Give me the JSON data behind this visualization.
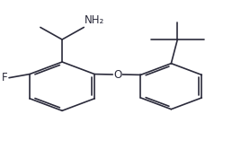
{
  "bg_color": "#ffffff",
  "line_color": "#2b2b3b",
  "text_color": "#2b2b3b",
  "figsize": [
    2.58,
    1.66
  ],
  "dpi": 100,
  "lw": 1.2,
  "lrx": 0.255,
  "lry": 0.42,
  "lr": 0.165,
  "rrx": 0.735,
  "rry": 0.42,
  "rr": 0.155,
  "label_NH2": {
    "text": "NH₂",
    "fontsize": 8.5
  },
  "label_F": {
    "text": "F",
    "fontsize": 8.5
  },
  "label_O": {
    "text": "O",
    "fontsize": 8.5
  }
}
